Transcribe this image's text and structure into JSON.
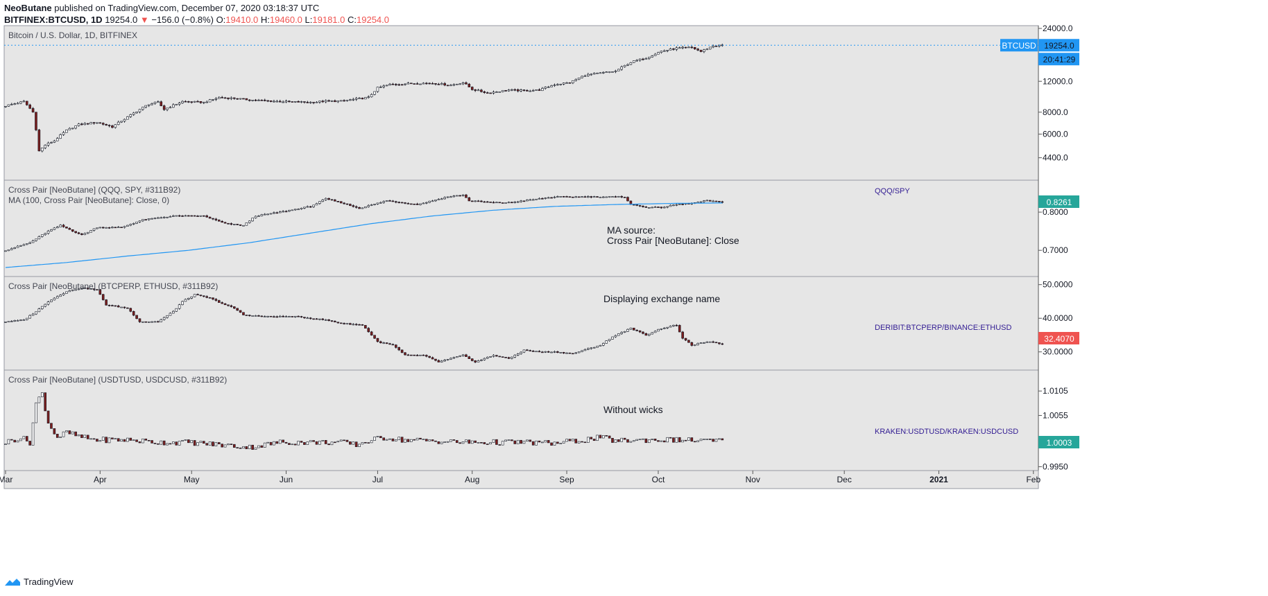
{
  "header": {
    "author": "NeoButane",
    "published_text": "published on TradingView.com, December 07, 2020 03:18:37 UTC",
    "symbol": "BITFINEX:BTCUSD, 1D",
    "last": "19254.0",
    "change": "−156.0 (−0.8%)",
    "o_label": "O:",
    "o_value": "19410.0",
    "h_label": "H:",
    "h_value": "19460.0",
    "l_label": "L:",
    "l_value": "19181.0",
    "c_label": "C:",
    "c_value": "19254.0",
    "down_color": "#ef5350"
  },
  "footer": {
    "brand": "TradingView"
  },
  "colors": {
    "up": "#ffffff",
    "down": "#7b1e1e",
    "wick": "#131722",
    "ma": "#2196f3",
    "pane_bg": "#e6e6e6",
    "label_text": "#311b92"
  },
  "chart_data": [
    {
      "type": "candlestick",
      "title": "Bitcoin / U.S. Dollar, 1D, BITFINEX",
      "scale": "log",
      "ylim": [
        3400,
        24000
      ],
      "yticks": [
        4400,
        6000,
        8000,
        12000,
        24000
      ],
      "ytick_labels": [
        "4400.0",
        "6000.0",
        "8000.0",
        "12000.0",
        "24000.0"
      ],
      "last_value_label": "19254.0",
      "symbol_badge": "BTCUSD",
      "countdown": "20:41:29",
      "anchors": [
        [
          0,
          8700
        ],
        [
          6,
          9200
        ],
        [
          9,
          8000
        ],
        [
          11,
          4800
        ],
        [
          13,
          5200
        ],
        [
          16,
          5500
        ],
        [
          20,
          6300
        ],
        [
          24,
          6800
        ],
        [
          30,
          7000
        ],
        [
          35,
          6600
        ],
        [
          40,
          7500
        ],
        [
          47,
          8900
        ],
        [
          50,
          9100
        ],
        [
          52,
          8300
        ],
        [
          58,
          9200
        ],
        [
          65,
          9100
        ],
        [
          70,
          9700
        ],
        [
          75,
          9600
        ],
        [
          80,
          9400
        ],
        [
          90,
          9200
        ],
        [
          100,
          9100
        ],
        [
          105,
          9250
        ],
        [
          110,
          9250
        ],
        [
          119,
          9700
        ],
        [
          122,
          11000
        ],
        [
          126,
          11500
        ],
        [
          135,
          11700
        ],
        [
          140,
          11700
        ],
        [
          146,
          11400
        ],
        [
          150,
          11800
        ],
        [
          153,
          10800
        ],
        [
          158,
          10300
        ],
        [
          165,
          10700
        ],
        [
          170,
          10600
        ],
        [
          175,
          10700
        ],
        [
          180,
          11500
        ],
        [
          185,
          11800
        ],
        [
          190,
          13000
        ],
        [
          200,
          13700
        ],
        [
          205,
          15400
        ],
        [
          210,
          16300
        ],
        [
          215,
          17800
        ],
        [
          220,
          18500
        ],
        [
          225,
          18700
        ],
        [
          228,
          17700
        ],
        [
          232,
          19100
        ],
        [
          235,
          19254
        ]
      ]
    },
    {
      "type": "candlestick",
      "title": "Cross Pair [NeoButane] (QQQ, SPY, #311B92)",
      "ma_title": "MA (100, Cross Pair [NeoButane]: Close, 0)",
      "annotation": [
        "MA source:",
        "Cross Pair [NeoButane]: Close"
      ],
      "series_label": "QQQ/SPY",
      "ylim": [
        0.635,
        0.88
      ],
      "yticks": [
        0.7,
        0.8
      ],
      "ytick_labels": [
        "0.7000",
        "0.8000"
      ],
      "last_value_label": "0.8261",
      "last_value_color": "#26a69a",
      "anchors": [
        [
          0,
          0.7
        ],
        [
          8,
          0.72
        ],
        [
          14,
          0.75
        ],
        [
          18,
          0.765
        ],
        [
          25,
          0.74
        ],
        [
          30,
          0.76
        ],
        [
          38,
          0.76
        ],
        [
          45,
          0.78
        ],
        [
          55,
          0.79
        ],
        [
          65,
          0.79
        ],
        [
          72,
          0.77
        ],
        [
          78,
          0.765
        ],
        [
          82,
          0.79
        ],
        [
          90,
          0.8
        ],
        [
          100,
          0.815
        ],
        [
          105,
          0.835
        ],
        [
          110,
          0.825
        ],
        [
          116,
          0.81
        ],
        [
          125,
          0.83
        ],
        [
          135,
          0.82
        ],
        [
          145,
          0.84
        ],
        [
          150,
          0.845
        ],
        [
          152,
          0.83
        ],
        [
          160,
          0.825
        ],
        [
          165,
          0.825
        ],
        [
          170,
          0.83
        ],
        [
          175,
          0.835
        ],
        [
          180,
          0.84
        ],
        [
          185,
          0.84
        ],
        [
          195,
          0.84
        ],
        [
          203,
          0.84
        ],
        [
          205,
          0.82
        ],
        [
          210,
          0.813
        ],
        [
          215,
          0.812
        ],
        [
          220,
          0.82
        ],
        [
          225,
          0.823
        ],
        [
          230,
          0.83
        ],
        [
          235,
          0.826
        ]
      ],
      "ma": [
        [
          0,
          0.655
        ],
        [
          20,
          0.668
        ],
        [
          40,
          0.685
        ],
        [
          60,
          0.7
        ],
        [
          80,
          0.72
        ],
        [
          100,
          0.745
        ],
        [
          120,
          0.77
        ],
        [
          140,
          0.79
        ],
        [
          160,
          0.805
        ],
        [
          180,
          0.815
        ],
        [
          200,
          0.82
        ],
        [
          220,
          0.823
        ],
        [
          235,
          0.824
        ]
      ]
    },
    {
      "type": "candlestick",
      "title": "Cross Pair [NeoButane] (BTCPERP, ETHUSD, #311B92)",
      "annotation": [
        "Displaying exchange name"
      ],
      "series_label": "DERIBIT:BTCPERP/BINANCE:ETHUSD",
      "ylim": [
        25,
        52
      ],
      "yticks": [
        30,
        40,
        50
      ],
      "ytick_labels": [
        "30.0000",
        "40.0000",
        "50.0000"
      ],
      "last_value_label": "32.4070",
      "last_value_color": "#ef5350",
      "anchors": [
        [
          0,
          39
        ],
        [
          6,
          39.5
        ],
        [
          10,
          42
        ],
        [
          14,
          45
        ],
        [
          20,
          48
        ],
        [
          25,
          49
        ],
        [
          30,
          48.5
        ],
        [
          33,
          44
        ],
        [
          40,
          43
        ],
        [
          44,
          39
        ],
        [
          50,
          39
        ],
        [
          55,
          42
        ],
        [
          58,
          45
        ],
        [
          62,
          47
        ],
        [
          67,
          46
        ],
        [
          72,
          44
        ],
        [
          75,
          43
        ],
        [
          78,
          41
        ],
        [
          85,
          40.5
        ],
        [
          95,
          40.5
        ],
        [
          105,
          39.5
        ],
        [
          110,
          38.5
        ],
        [
          117,
          38
        ],
        [
          122,
          33
        ],
        [
          127,
          32
        ],
        [
          131,
          29
        ],
        [
          137,
          29
        ],
        [
          142,
          27
        ],
        [
          146,
          28
        ],
        [
          150,
          29
        ],
        [
          154,
          27
        ],
        [
          160,
          29
        ],
        [
          165,
          28
        ],
        [
          170,
          30.5
        ],
        [
          175,
          30
        ],
        [
          180,
          30
        ],
        [
          186,
          29.5
        ],
        [
          195,
          32
        ],
        [
          200,
          35
        ],
        [
          205,
          37
        ],
        [
          210,
          35
        ],
        [
          215,
          37
        ],
        [
          220,
          38
        ],
        [
          222,
          34
        ],
        [
          225,
          32
        ],
        [
          230,
          33
        ],
        [
          235,
          32.4
        ]
      ]
    },
    {
      "type": "candlestick",
      "title": "Cross Pair [NeoButane] (USDTUSD, USDCUSD, #311B92)",
      "annotation": [
        "Without wicks"
      ],
      "series_label": "KRAKEN:USDTUSD/KRAKEN:USDCUSD",
      "ylim": [
        0.9945,
        1.0145
      ],
      "yticks": [
        0.995,
        1.0005,
        1.0055,
        1.0105
      ],
      "ytick_labels": [
        "0.9950",
        "1.0005",
        "1.0055",
        "1.0105"
      ],
      "last_value_label": "1.0003",
      "last_value_color": "#26a69a",
      "anchors": [
        [
          0,
          1.0
        ],
        [
          5,
          1.001
        ],
        [
          8,
          1.0
        ],
        [
          10,
          1.008
        ],
        [
          12,
          1.01
        ],
        [
          14,
          1.004
        ],
        [
          17,
          1.001
        ],
        [
          20,
          1.002
        ],
        [
          25,
          1.001
        ],
        [
          30,
          1.0005
        ],
        [
          40,
          1.0005
        ],
        [
          50,
          1.0
        ],
        [
          60,
          1.0
        ],
        [
          70,
          0.9995
        ],
        [
          80,
          0.999
        ],
        [
          90,
          1.0
        ],
        [
          100,
          1.0
        ],
        [
          110,
          1.0
        ],
        [
          115,
          0.9995
        ],
        [
          120,
          1.0005
        ],
        [
          125,
          1.001
        ],
        [
          130,
          1.0005
        ],
        [
          140,
          1.0003
        ],
        [
          150,
          1.0
        ],
        [
          160,
          1.0
        ],
        [
          170,
          1.0
        ],
        [
          180,
          0.9998
        ],
        [
          190,
          1.0005
        ],
        [
          195,
          1.001
        ],
        [
          200,
          1.0003
        ],
        [
          210,
          1.0005
        ],
        [
          220,
          1.0005
        ],
        [
          230,
          1.0003
        ],
        [
          235,
          1.0003
        ]
      ]
    }
  ],
  "x_axis": {
    "ticks": [
      [
        0,
        "Mar"
      ],
      [
        31,
        "Apr"
      ],
      [
        61,
        "May"
      ],
      [
        92,
        "Jun"
      ],
      [
        122,
        "Jul"
      ],
      [
        153,
        "Aug"
      ],
      [
        184,
        "Sep"
      ],
      [
        214,
        "Oct"
      ],
      [
        245,
        "Nov"
      ],
      [
        275,
        "Dec"
      ],
      [
        306,
        "2021"
      ],
      [
        337,
        "Feb"
      ]
    ]
  }
}
